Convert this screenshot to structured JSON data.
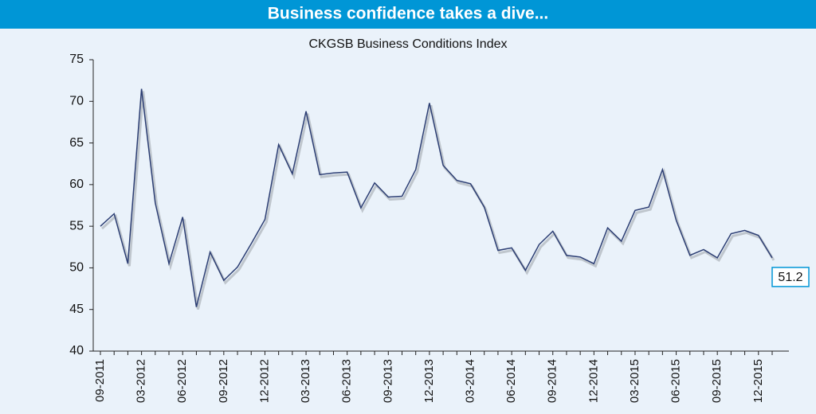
{
  "chart_data": {
    "type": "line",
    "title": "Business confidence takes a dive...",
    "subtitle": "CKGSB Business Conditions Index",
    "categories": [
      "09-2011",
      null,
      null,
      "03-2012",
      null,
      null,
      "06-2012",
      null,
      null,
      "09-2012",
      null,
      null,
      "12-2012",
      null,
      null,
      "03-2013",
      null,
      null,
      "06-2013",
      null,
      null,
      "09-2013",
      null,
      null,
      "12-2013",
      null,
      null,
      "03-2014",
      null,
      null,
      "06-2014",
      null,
      null,
      "09-2014",
      null,
      null,
      "12-2014",
      null,
      null,
      "03-2015",
      null,
      null,
      "06-2015",
      null,
      null,
      "09-2015",
      null,
      null,
      "12-2015",
      null
    ],
    "values": [
      55,
      56.5,
      50.5,
      71.5,
      57.8,
      50.5,
      56.1,
      45.3,
      51.9,
      48.5,
      50.1,
      52.9,
      55.8,
      64.8,
      61.3,
      68.8,
      61.2,
      61.4,
      61.5,
      57.2,
      60.2,
      58.5,
      58.6,
      61.8,
      69.8,
      62.3,
      60.5,
      60.1,
      57.3,
      52.1,
      52.4,
      49.7,
      52.8,
      54.4,
      51.5,
      51.3,
      50.5,
      54.8,
      53.2,
      56.9,
      57.3,
      61.8,
      55.7,
      51.5,
      52.2,
      51.2,
      54.1,
      54.5,
      53.9,
      51.2
    ],
    "color": "#2c3e73",
    "ylim": [
      40,
      75
    ],
    "yticks": [
      40,
      45,
      50,
      55,
      60,
      65,
      70,
      75
    ]
  }
}
